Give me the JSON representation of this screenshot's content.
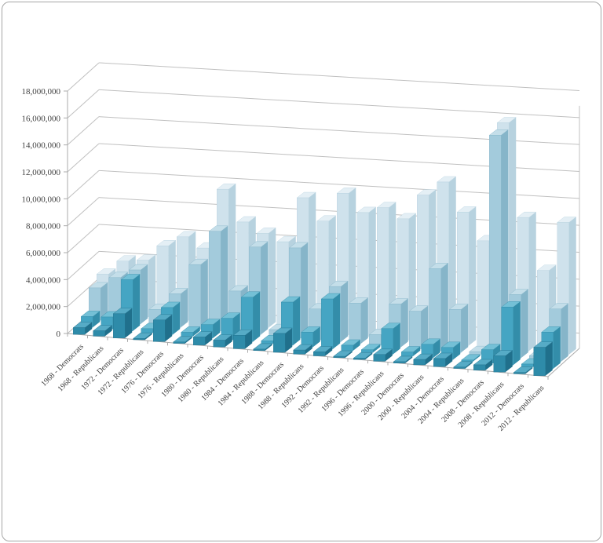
{
  "window": {
    "background": "#ffffff",
    "frame_border_color": "#a6a6a6"
  },
  "chart_data": {
    "type": "bar",
    "projection": "3d-column",
    "title": "",
    "xlabel": "",
    "ylabel": "",
    "legend": "none",
    "grid": true,
    "ylim": [
      0,
      18000000
    ],
    "y_ticks": [
      "0",
      "2,000,000",
      "4,000,000",
      "6,000,000",
      "8,000,000",
      "10,000,000",
      "12,000,000",
      "14,000,000",
      "16,000,000",
      "18,000,000"
    ],
    "categories": [
      "1968 - Democrats",
      "1968 - Republicans",
      "1972 - Democrats",
      "1972 - Republicans",
      "1976 - Democrats",
      "1976 - Republicans",
      "1980 - Democrats",
      "1980 - Republicans",
      "1984 - Democrats",
      "1984 - Republicans",
      "1988 - Democrats",
      "1988 - Republicans",
      "1992 - Democrats",
      "1992 - Republicans",
      "1996 - Democrats",
      "1996 - Republicans",
      "2000 - Democrats",
      "2000 - Republicans",
      "2004 - Democrats",
      "2004 - Republicans",
      "2008 - Democrats",
      "2008 - Republicans",
      "2012 - Democrats",
      "2012 - Republicans"
    ],
    "series": [
      {
        "row": "front",
        "color": "#2E8BA9",
        "values": [
          500000,
          400000,
          1800000,
          100000,
          1600000,
          100000,
          600000,
          500000,
          1000000,
          100000,
          1400000,
          300000,
          300000,
          100000,
          100000,
          500000,
          100000,
          400000,
          600000,
          100000,
          400000,
          1200000,
          100000,
          2100000
        ]
      },
      {
        "row": "second",
        "color": "#45A5C3",
        "values": [
          800000,
          900000,
          3800000,
          300000,
          2000000,
          300000,
          1000000,
          1600000,
          3300000,
          200000,
          3200000,
          1100000,
          3700000,
          400000,
          200000,
          1900000,
          300000,
          1000000,
          900000,
          100000,
          1000000,
          4300000,
          200000,
          2700000
        ]
      },
      {
        "row": "third",
        "color": "#A3CBDC",
        "values": [
          2400000,
          3300000,
          4000000,
          1200000,
          2500000,
          4800000,
          7400000,
          3100000,
          6500000,
          500000,
          6700000,
          2300000,
          4100000,
          3000000,
          800000,
          3200000,
          2800000,
          6100000,
          3200000,
          200000,
          16400000,
          4700000,
          300000,
          3900000
        ]
      },
      {
        "row": "back",
        "color": "#CFE2EC",
        "values": [
          2900000,
          4000000,
          4200000,
          5400000,
          6200000,
          5500000,
          10000000,
          7700000,
          7000000,
          6500000,
          9900000,
          8300000,
          10500000,
          9200000,
          9700000,
          9000000,
          10900000,
          12000000,
          9900000,
          7900000,
          16800000,
          9900000,
          6100000,
          9800000
        ]
      }
    ],
    "colors": {
      "gridline": "#C0C0C0",
      "axis_line": "#ABABAB",
      "tick_text": "#3F3F3F",
      "series_faces": [
        {
          "front": "#2E8BA9",
          "top": "#56ABC6",
          "side": "#20708C"
        },
        {
          "front": "#45A5C3",
          "top": "#74C0D6",
          "side": "#338DA9"
        },
        {
          "front": "#A3CBDC",
          "top": "#C4DEE9",
          "side": "#86B5C9"
        },
        {
          "front": "#CFE2EC",
          "top": "#E4EFF5",
          "side": "#B7D2DF"
        }
      ]
    }
  }
}
